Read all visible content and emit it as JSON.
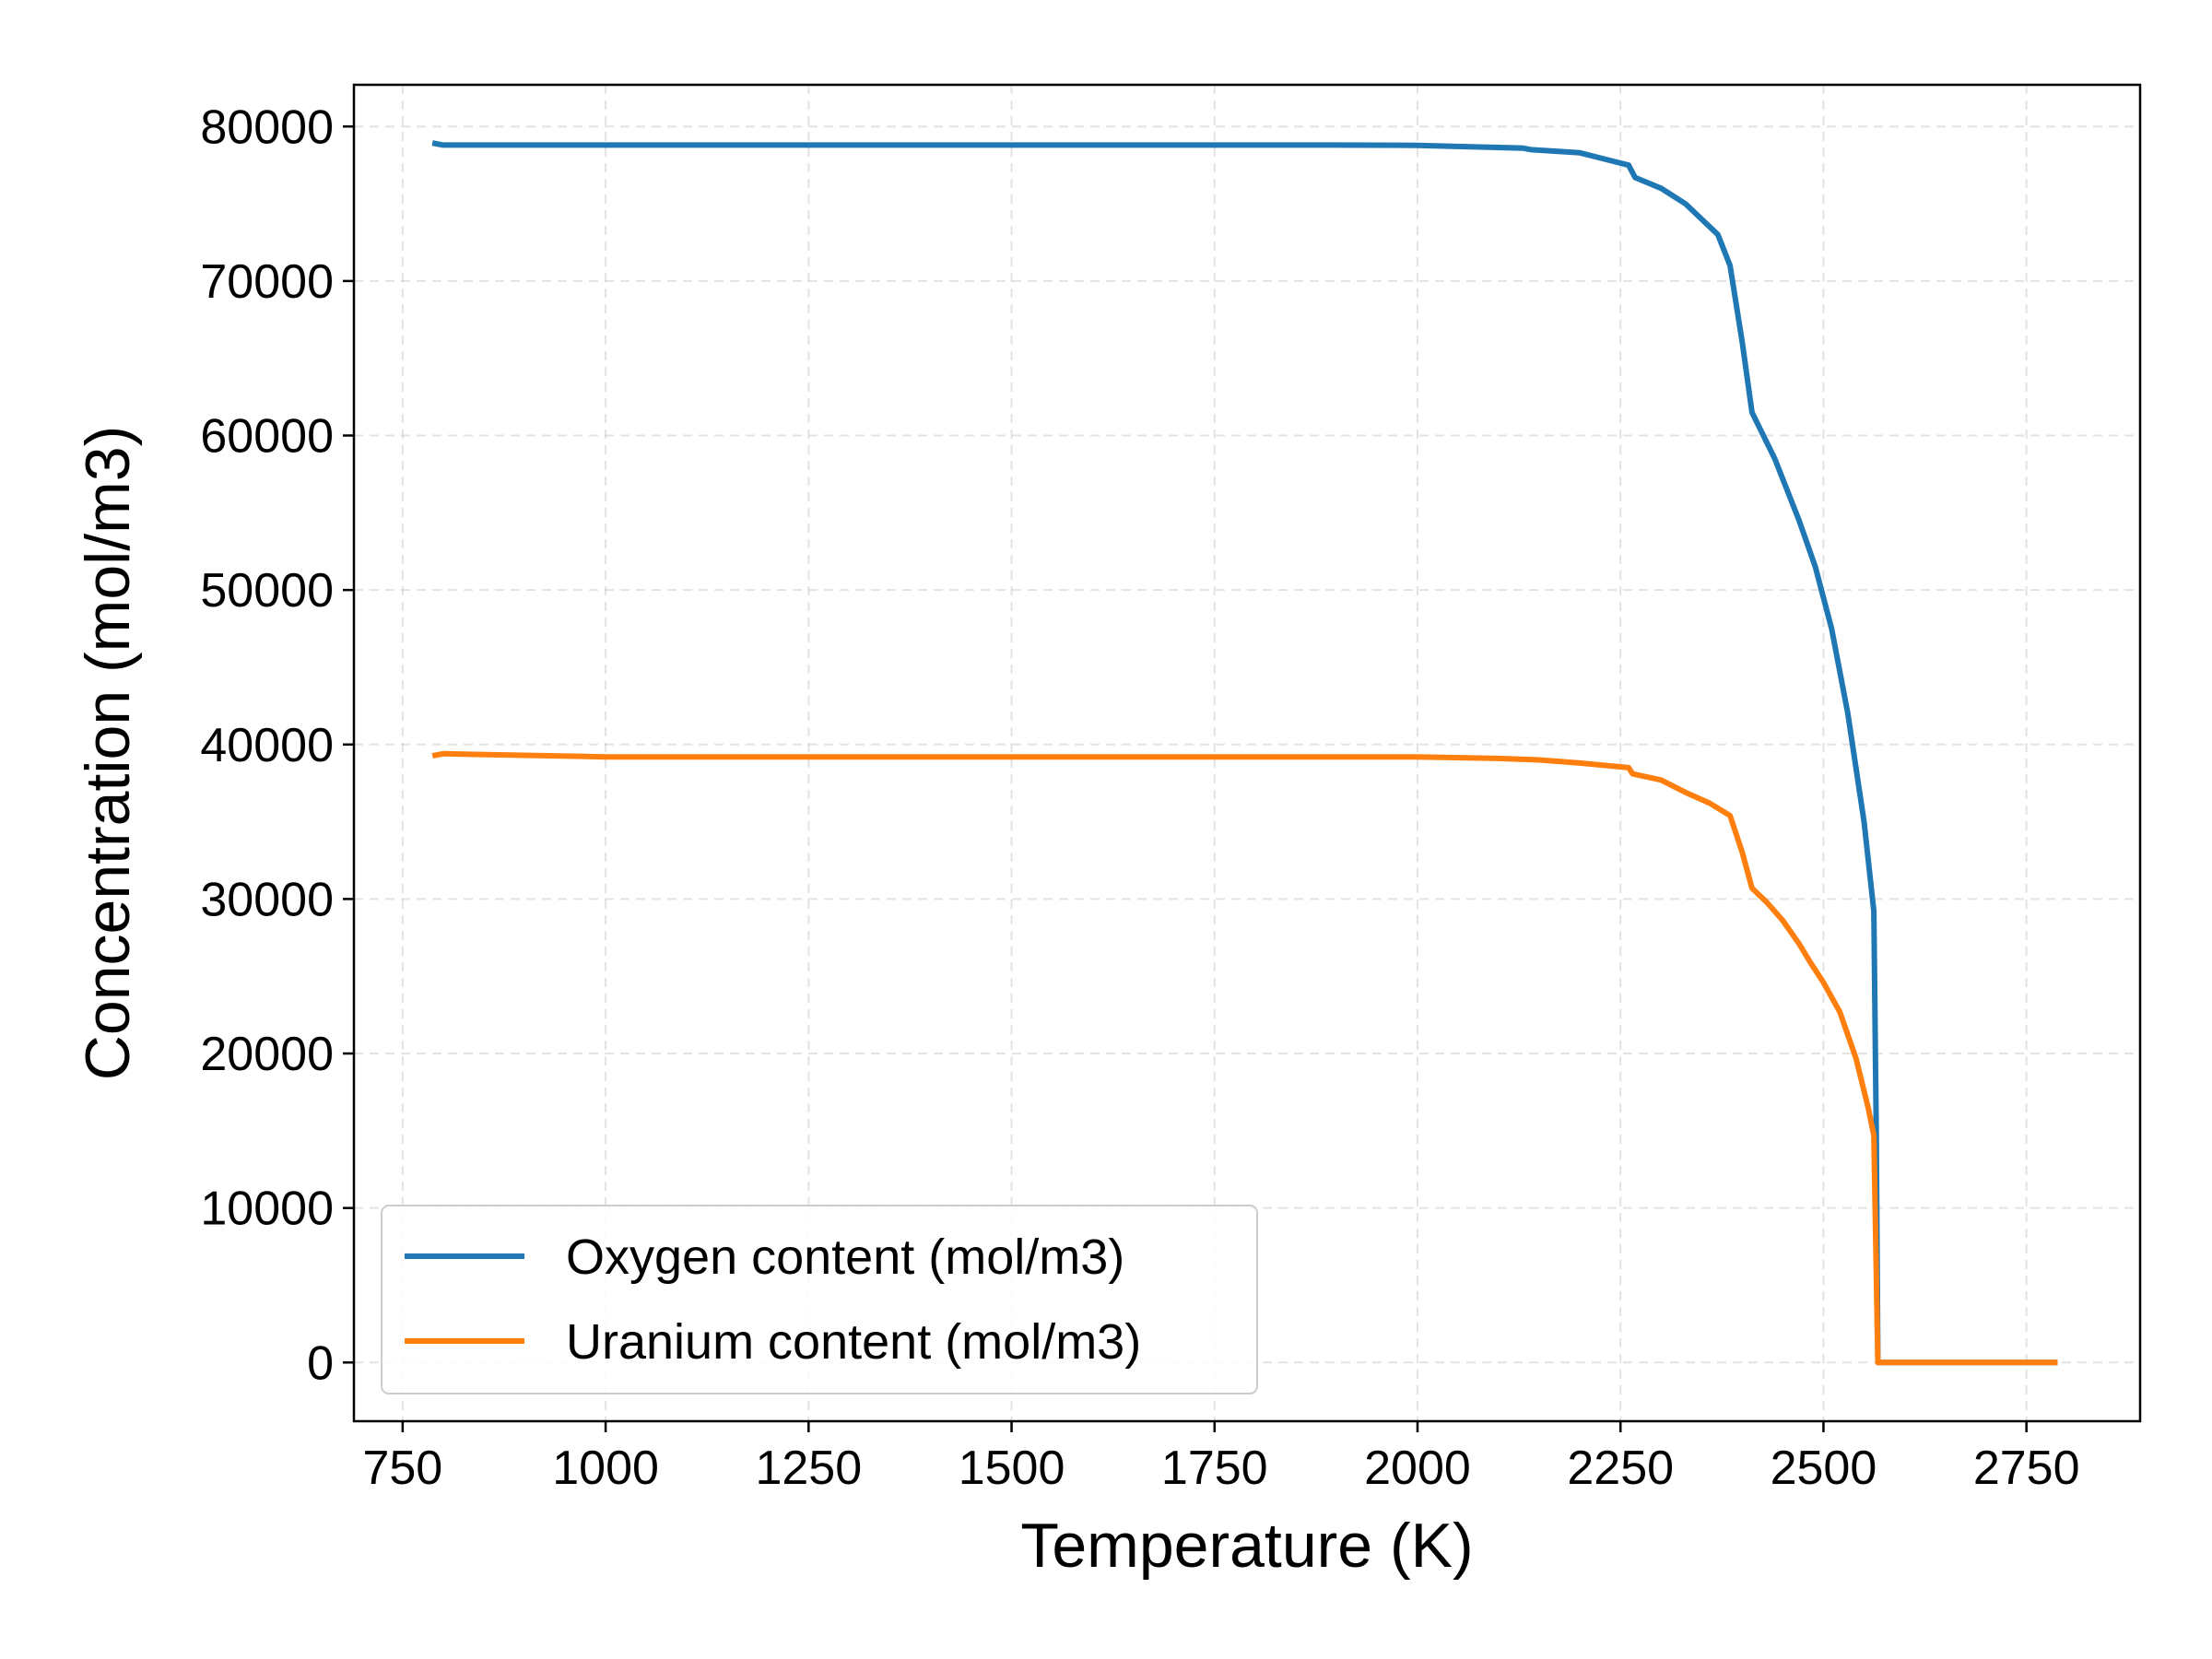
{
  "chart_data": {
    "type": "line",
    "xlabel": "Temperature (K)",
    "ylabel": "Concentration (mol/m3)",
    "xlim": [
      690,
      2890
    ],
    "ylim": [
      -3800,
      82700
    ],
    "x_ticks": [
      750,
      1000,
      1250,
      1500,
      1750,
      2000,
      2250,
      2500,
      2750
    ],
    "y_ticks": [
      0,
      10000,
      20000,
      30000,
      40000,
      50000,
      60000,
      70000,
      80000
    ],
    "x_tick_labels": [
      "750",
      "1000",
      "1250",
      "1500",
      "1750",
      "2000",
      "2250",
      "2500",
      "2750"
    ],
    "y_tick_labels": [
      "0",
      "10000",
      "20000",
      "30000",
      "40000",
      "50000",
      "60000",
      "70000",
      "80000"
    ],
    "grid": true,
    "legend_position": "lower-left",
    "series": [
      {
        "name": "Oxygen content (mol/m3)",
        "color": "#1f77b4",
        "points": [
          [
            790,
            78900
          ],
          [
            800,
            78800
          ],
          [
            1000,
            78800
          ],
          [
            1500,
            78800
          ],
          [
            1900,
            78800
          ],
          [
            2000,
            78780
          ],
          [
            2060,
            78700
          ],
          [
            2130,
            78600
          ],
          [
            2140,
            78500
          ],
          [
            2200,
            78300
          ],
          [
            2230,
            77900
          ],
          [
            2260,
            77500
          ],
          [
            2268,
            76700
          ],
          [
            2300,
            76000
          ],
          [
            2330,
            75000
          ],
          [
            2350,
            74000
          ],
          [
            2370,
            73000
          ],
          [
            2385,
            71000
          ],
          [
            2400,
            66000
          ],
          [
            2412,
            61500
          ],
          [
            2440,
            58500
          ],
          [
            2470,
            54500
          ],
          [
            2490,
            51500
          ],
          [
            2510,
            47500
          ],
          [
            2530,
            42000
          ],
          [
            2550,
            35000
          ],
          [
            2562,
            29200
          ],
          [
            2565,
            15000
          ],
          [
            2567,
            0
          ],
          [
            2785,
            0
          ]
        ]
      },
      {
        "name": "Uranium content (mol/m3)",
        "color": "#ff7f0e",
        "points": [
          [
            790,
            39300
          ],
          [
            800,
            39400
          ],
          [
            1000,
            39200
          ],
          [
            1500,
            39200
          ],
          [
            2000,
            39200
          ],
          [
            2100,
            39100
          ],
          [
            2150,
            39000
          ],
          [
            2200,
            38800
          ],
          [
            2260,
            38500
          ],
          [
            2265,
            38100
          ],
          [
            2300,
            37700
          ],
          [
            2330,
            36900
          ],
          [
            2360,
            36200
          ],
          [
            2385,
            35400
          ],
          [
            2400,
            33000
          ],
          [
            2412,
            30700
          ],
          [
            2430,
            29800
          ],
          [
            2450,
            28600
          ],
          [
            2470,
            27100
          ],
          [
            2485,
            25800
          ],
          [
            2500,
            24600
          ],
          [
            2520,
            22700
          ],
          [
            2540,
            19700
          ],
          [
            2555,
            16500
          ],
          [
            2562,
            14700
          ],
          [
            2567,
            0
          ],
          [
            2785,
            0
          ]
        ]
      }
    ]
  }
}
